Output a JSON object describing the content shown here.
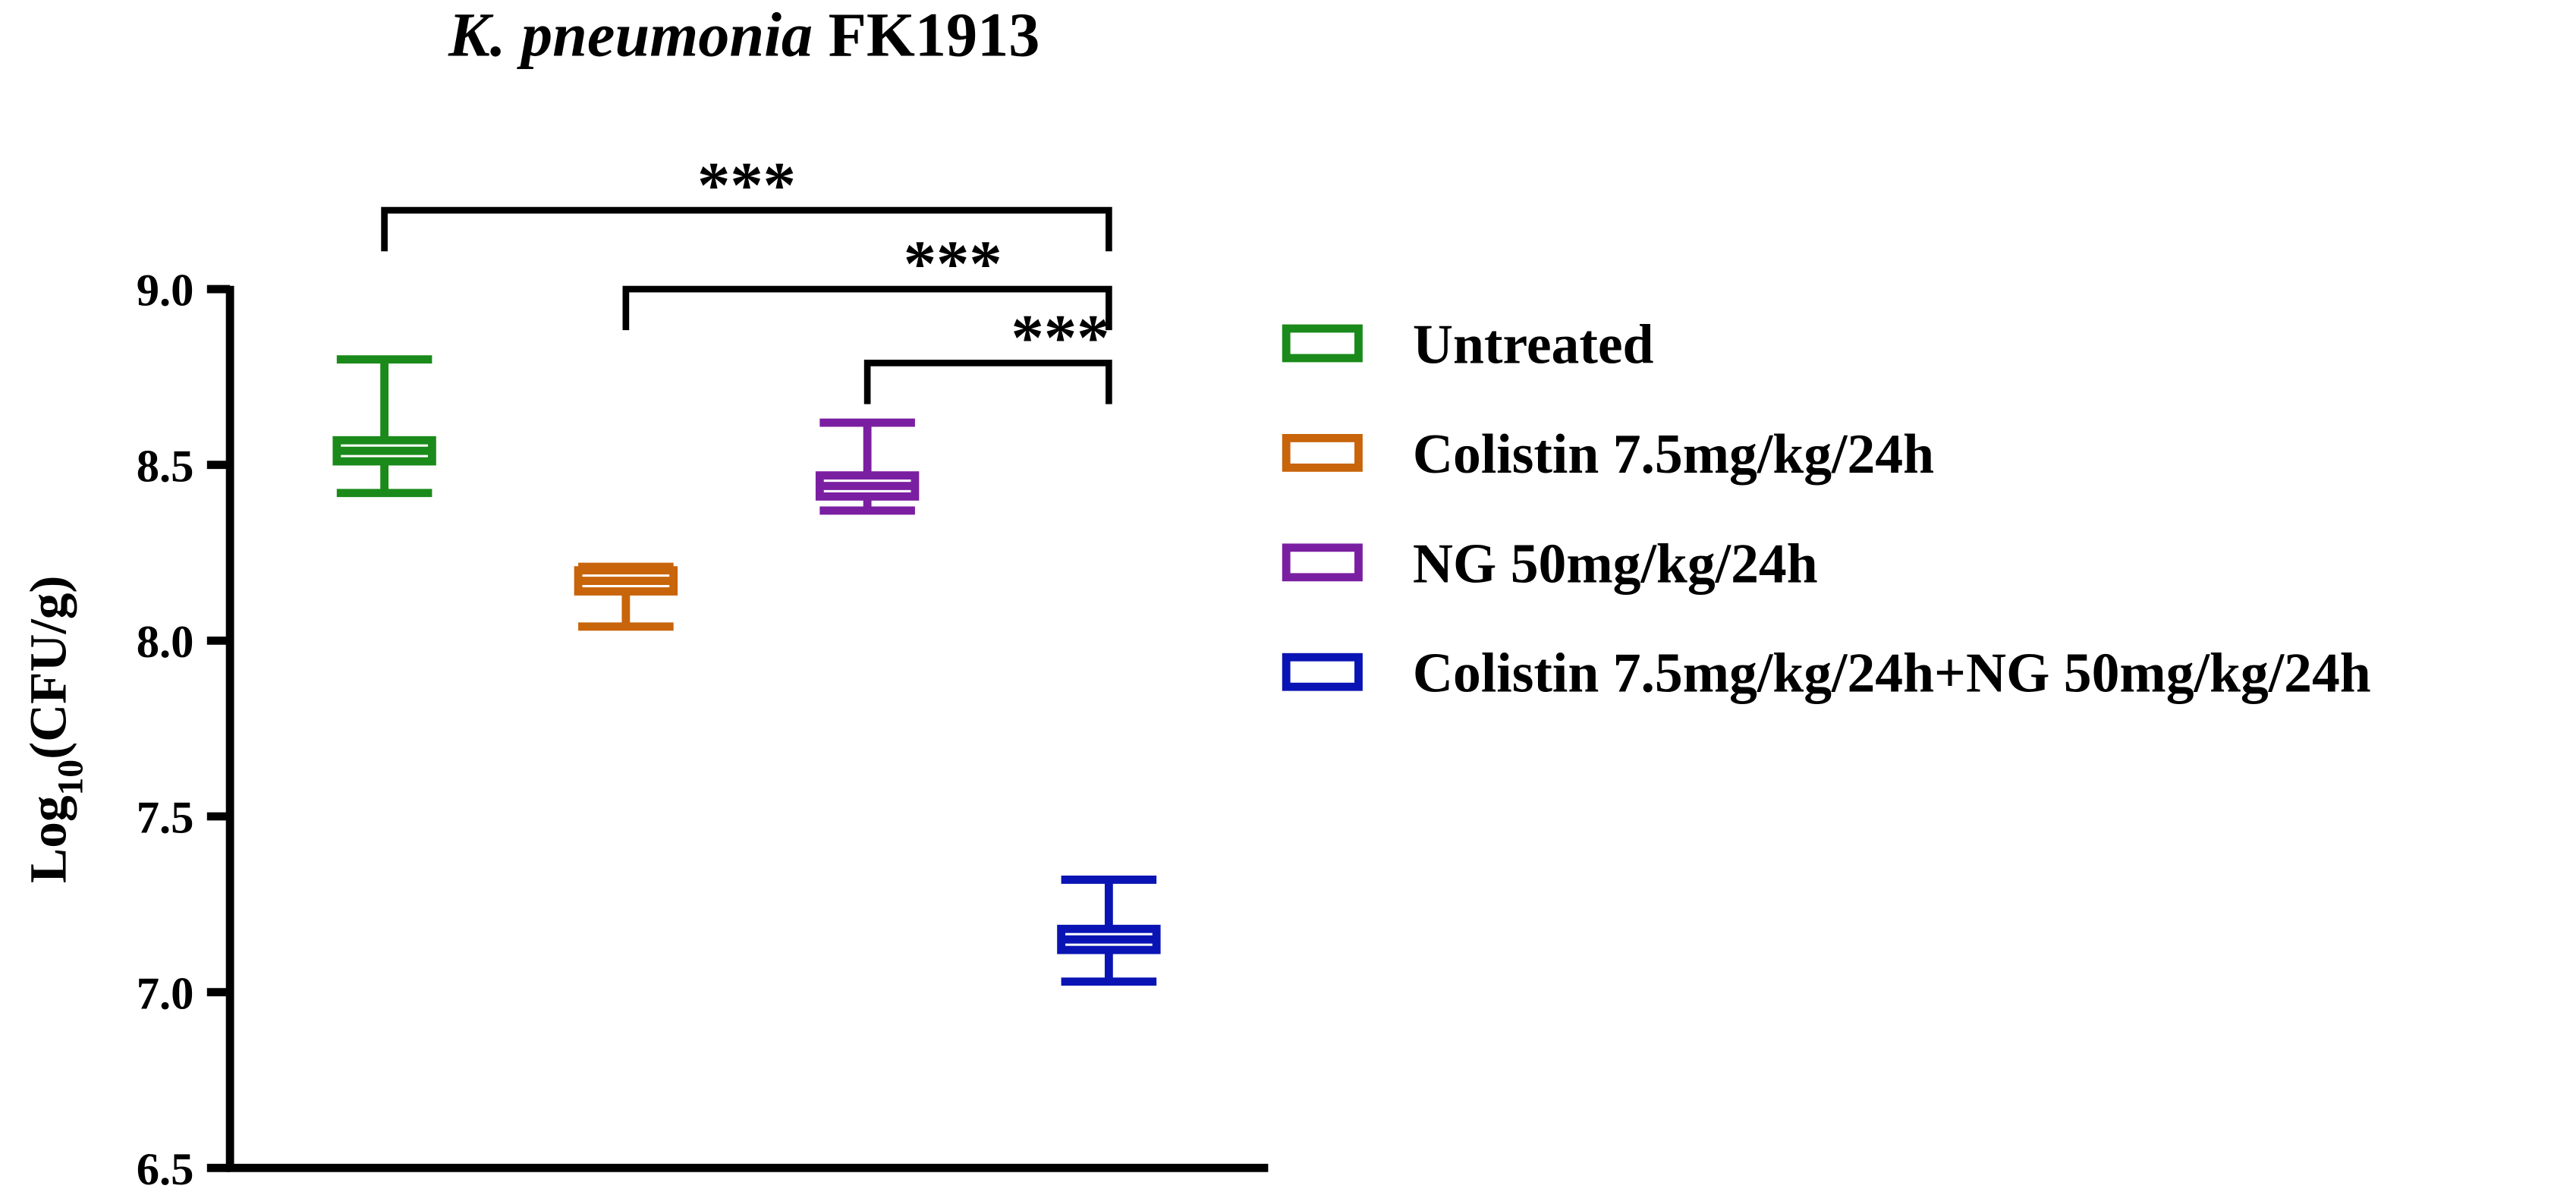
{
  "chart_data": {
    "type": "box",
    "title": {
      "italic": "K. pneumonia",
      "text": "FK1913"
    },
    "ylabel": [
      "Log",
      "10",
      "(CFU/g)"
    ],
    "ylim": [
      6.5,
      9.0
    ],
    "yticks": [
      6.5,
      {
        "value": 7.0,
        "label": "7.0"
      },
      7.5,
      {
        "value": 8.0,
        "label": "8.0"
      },
      8.5,
      {
        "value": 9.0,
        "label": "9.0"
      }
    ],
    "series": [
      {
        "name": "Untreated",
        "color": "#1a8a1a",
        "min": 8.42,
        "q1": 8.51,
        "median": 8.54,
        "q3": 8.57,
        "max": 8.8
      },
      {
        "name": "Colistin 7.5mg/kg/24h",
        "color": "#c8640a",
        "min": 8.04,
        "q1": 8.14,
        "median": 8.17,
        "q3": 8.2,
        "max": 8.21
      },
      {
        "name": "NG 50mg/kg/24h",
        "color": "#7b1fa2",
        "min": 8.37,
        "q1": 8.41,
        "median": 8.44,
        "q3": 8.47,
        "max": 8.62
      },
      {
        "name": "Colistin 7.5mg/kg/24h+NG 50mg/kg/24h",
        "color": "#0a14b4",
        "min": 7.03,
        "q1": 7.12,
        "median": 7.15,
        "q3": 7.18,
        "max": 7.32
      }
    ],
    "significance": [
      {
        "label": "***",
        "groups": [
          0,
          3
        ]
      },
      {
        "label": "***",
        "groups": [
          1,
          3
        ]
      },
      {
        "label": "***",
        "groups": [
          2,
          3
        ]
      }
    ]
  }
}
